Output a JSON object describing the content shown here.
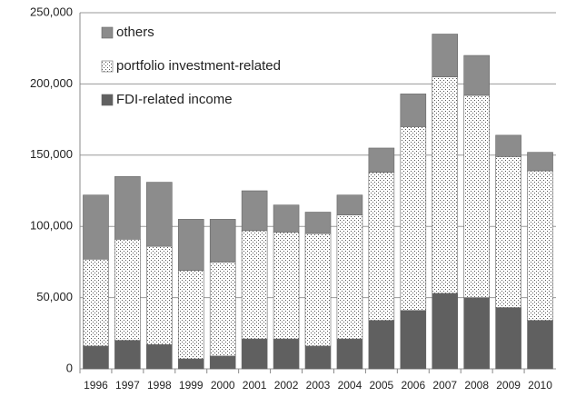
{
  "chart_data": {
    "type": "stacked_bar",
    "categories": [
      "1996",
      "1997",
      "1998",
      "1999",
      "2000",
      "2001",
      "2002",
      "2003",
      "2004",
      "2005",
      "2006",
      "2007",
      "2008",
      "2009",
      "2010"
    ],
    "series": [
      {
        "name": "FDI-related income",
        "color": "#606060",
        "values": [
          16000,
          20000,
          17000,
          7000,
          9000,
          21000,
          21000,
          16000,
          21000,
          34000,
          41000,
          53000,
          50000,
          43000,
          34000
        ]
      },
      {
        "name": "portfolio investment-related",
        "color": "#ffffff",
        "pattern": "dots",
        "values": [
          61000,
          71000,
          69000,
          62000,
          66000,
          76000,
          75000,
          79000,
          87000,
          104000,
          129000,
          152000,
          142000,
          106000,
          105000
        ]
      },
      {
        "name": "others",
        "color": "#8c8c8c",
        "values": [
          45000,
          44000,
          45000,
          36000,
          30000,
          28000,
          19000,
          15000,
          14000,
          17000,
          23000,
          30000,
          28000,
          15000,
          13000
        ]
      }
    ],
    "ylim": [
      0,
      250000
    ],
    "yticks": [
      0,
      {
        "value": 50000,
        "label": "50,000"
      },
      {
        "value": 100000,
        "label": "100,000"
      },
      {
        "value": 150000,
        "label": "150,000"
      },
      {
        "value": 200000,
        "label": "200,000"
      },
      {
        "value": 250000,
        "label": "250,000"
      }
    ],
    "grid": true,
    "legend": "top-left"
  }
}
